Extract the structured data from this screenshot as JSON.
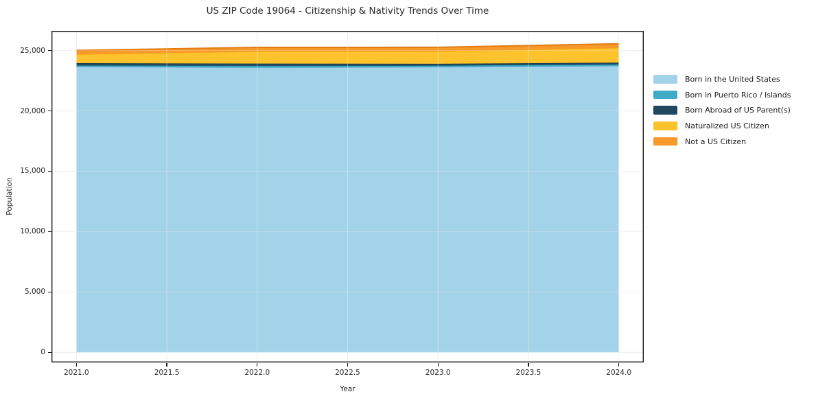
{
  "chart_data": {
    "type": "area",
    "stacked": true,
    "title": "US ZIP Code 19064 - Citizenship & Nativity Trends Over Time",
    "xlabel": "Year",
    "ylabel": "Population",
    "x": [
      2021,
      2022,
      2023,
      2024
    ],
    "series": [
      {
        "name": "Born in the United States",
        "color": "#A3D3E8",
        "edge_color": "#84BFDD",
        "values": [
          23650,
          23580,
          23620,
          23720
        ]
      },
      {
        "name": "Born in Puerto Rico / Islands",
        "color": "#41AAC6",
        "edge_color": "#2E93AE",
        "values": [
          115,
          155,
          130,
          130
        ]
      },
      {
        "name": "Born Abroad of US Parent(s)",
        "color": "#20485E",
        "edge_color": "#16374A",
        "values": [
          190,
          190,
          155,
          155
        ]
      },
      {
        "name": "Naturalized US Citizen",
        "color": "#FDC32D",
        "edge_color": "#F2B017",
        "values": [
          720,
          1000,
          1025,
          1210
        ]
      },
      {
        "name": "Not a US Citizen",
        "color": "#F8992B",
        "edge_color": "#E07C12",
        "values": [
          340,
          340,
          340,
          345
        ]
      }
    ],
    "x_tick_values": [
      2021.0,
      2021.5,
      2022.0,
      2022.5,
      2023.0,
      2023.5,
      2024.0
    ],
    "x_tick_labels": [
      "2021.0",
      "2021.5",
      "2022.0",
      "2022.5",
      "2023.0",
      "2023.5",
      "2024.0"
    ],
    "y_tick_values": [
      0,
      5000,
      10000,
      15000,
      20000,
      25000
    ],
    "y_tick_labels": [
      "0",
      "5,000",
      "10,000",
      "15,000",
      "20,000",
      "25,000"
    ],
    "xlim": [
      2020.862,
      2024.138
    ],
    "ylim": [
      -840,
      26630
    ],
    "grid": true,
    "legend_position": "center-right-outside",
    "axis_color": "#1a1a1a",
    "grid_color": "#e9e9e9",
    "text_color": "#262626",
    "background_color": "#ffffff"
  }
}
